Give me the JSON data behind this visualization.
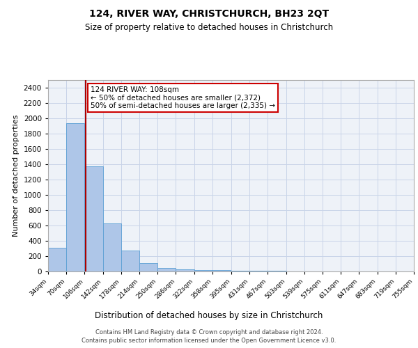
{
  "title": "124, RIVER WAY, CHRISTCHURCH, BH23 2QT",
  "subtitle": "Size of property relative to detached houses in Christchurch",
  "xlabel": "Distribution of detached houses by size in Christchurch",
  "ylabel": "Number of detached properties",
  "bin_edges": [
    34,
    70,
    106,
    142,
    178,
    214,
    250,
    286,
    322,
    358,
    395,
    431,
    467,
    503,
    539,
    575,
    611,
    647,
    683,
    719,
    755
  ],
  "bar_heights": [
    310,
    1940,
    1370,
    630,
    270,
    105,
    50,
    30,
    20,
    20,
    10,
    7,
    5,
    4,
    3,
    3,
    2,
    2,
    2,
    2
  ],
  "bar_color": "#aec6e8",
  "bar_edge_color": "#5a9fd4",
  "property_size": 108,
  "vline_color": "#aa0000",
  "annotation_line1": "124 RIVER WAY: 108sqm",
  "annotation_line2": "← 50% of detached houses are smaller (2,372)",
  "annotation_line3": "50% of semi-detached houses are larger (2,335) →",
  "annotation_box_color": "white",
  "annotation_box_edge": "#cc0000",
  "ylim": [
    0,
    2500
  ],
  "yticks": [
    0,
    200,
    400,
    600,
    800,
    1000,
    1200,
    1400,
    1600,
    1800,
    2000,
    2200,
    2400
  ],
  "footer_line1": "Contains HM Land Registry data © Crown copyright and database right 2024.",
  "footer_line2": "Contains public sector information licensed under the Open Government Licence v3.0.",
  "bg_color": "#eef2f8",
  "grid_color": "#c8d4e8",
  "title_fontsize": 10,
  "subtitle_fontsize": 8.5,
  "ylabel_fontsize": 8,
  "xlabel_fontsize": 8.5,
  "ytick_fontsize": 7.5,
  "xtick_fontsize": 6.5,
  "footer_fontsize": 6,
  "annot_fontsize": 7.5
}
